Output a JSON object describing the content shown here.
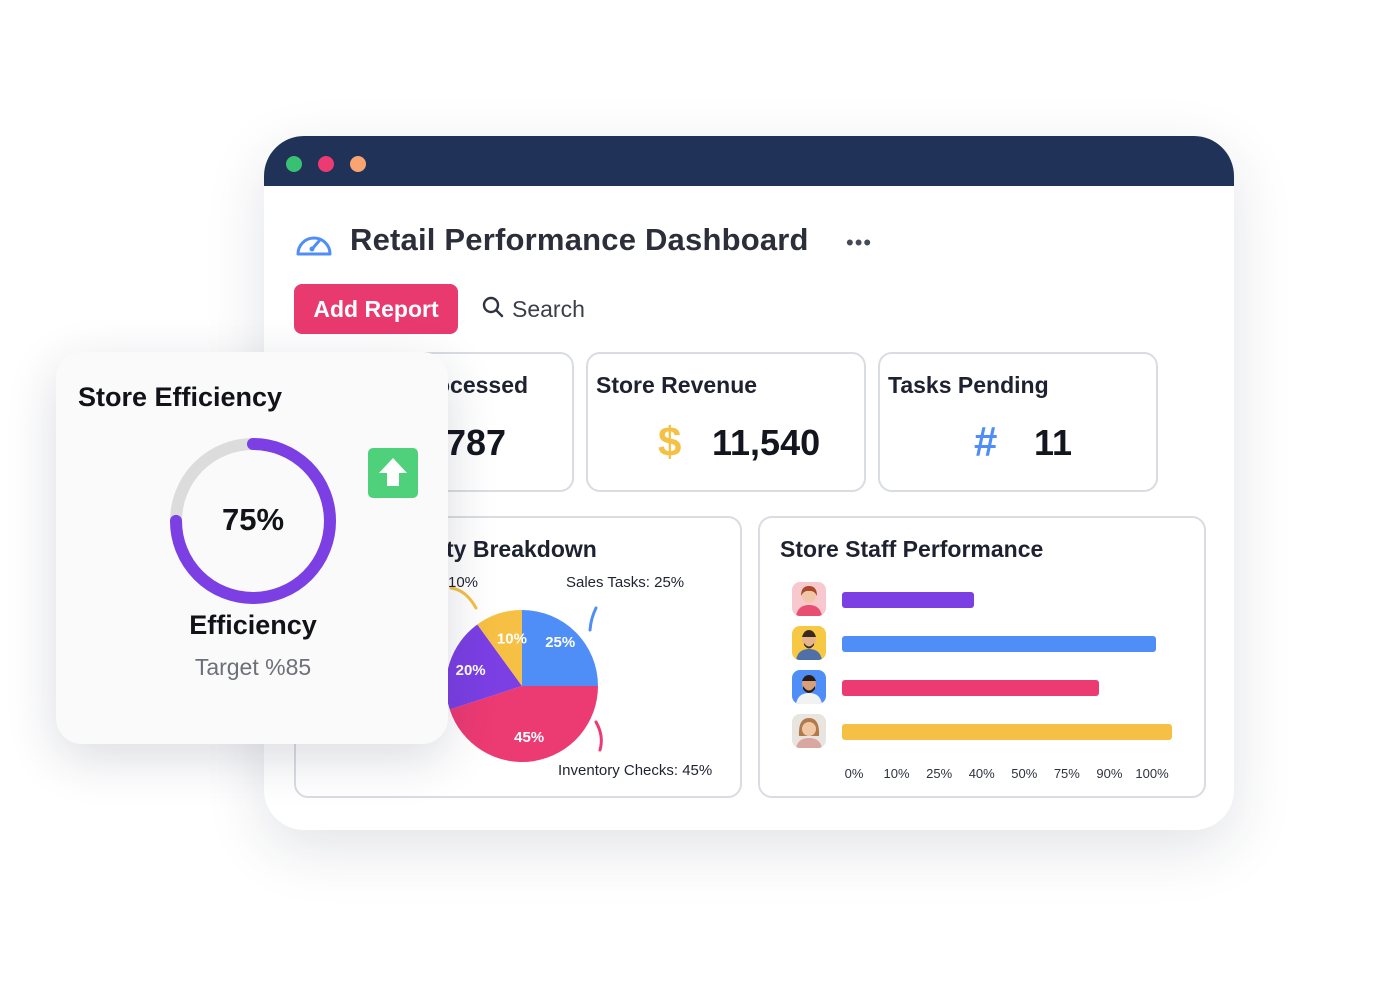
{
  "window": {
    "title": "Retail Performance Dashboard",
    "controls": [
      "close",
      "minimize",
      "maximize"
    ]
  },
  "toolbar": {
    "add_report_label": "Add Report",
    "search_placeholder": "Search"
  },
  "stats": [
    {
      "title": "ocessed",
      "value": "787",
      "icon": "none"
    },
    {
      "title": "Store Revenue",
      "value": "11,540",
      "icon": "dollar-icon",
      "symbol": "$"
    },
    {
      "title": "Tasks Pending",
      "value": "11",
      "icon": "hash-icon",
      "symbol": "#"
    }
  ],
  "breakdown": {
    "title": "ty Breakdown",
    "labels": {
      "left_top": "10%",
      "sales": "Sales Tasks: 25%",
      "inventory": "Inventory Checks: 45%"
    },
    "chart_data": {
      "type": "pie",
      "slices": [
        {
          "value": 25,
          "label": "25%",
          "color": "#4f8ef7"
        },
        {
          "value": 45,
          "label": "45%",
          "color": "#ec3a73"
        },
        {
          "value": 20,
          "label": "20%",
          "color": "#7b3fe4"
        },
        {
          "value": 10,
          "label": "10%",
          "color": "#f5c043"
        }
      ]
    }
  },
  "staff": {
    "title": "Store Staff Performance",
    "chart_data": {
      "type": "bar",
      "orientation": "horizontal",
      "rows": [
        {
          "value": 40,
          "color": "#7b3fe4"
        },
        {
          "value": 95,
          "color": "#4f8ef7"
        },
        {
          "value": 78,
          "color": "#ec3a73"
        },
        {
          "value": 100,
          "color": "#f5c043"
        }
      ],
      "xticks": [
        "0%",
        "10%",
        "25%",
        "40%",
        "50%",
        "75%",
        "90%",
        "100%"
      ]
    }
  },
  "efficiency": {
    "title": "Store Efficiency",
    "value_label": "75%",
    "progress": 0.75,
    "label": "Efficiency",
    "target": "Target %85",
    "ring_color": "#7b3fe4",
    "track_color": "#dcdcdc"
  },
  "colors": {
    "titlebar": "#203257",
    "accent": "#e93a6f",
    "purple": "#7b3fe4",
    "blue": "#4f8ef7",
    "pink": "#ec3a73",
    "yellow": "#f5c043"
  }
}
